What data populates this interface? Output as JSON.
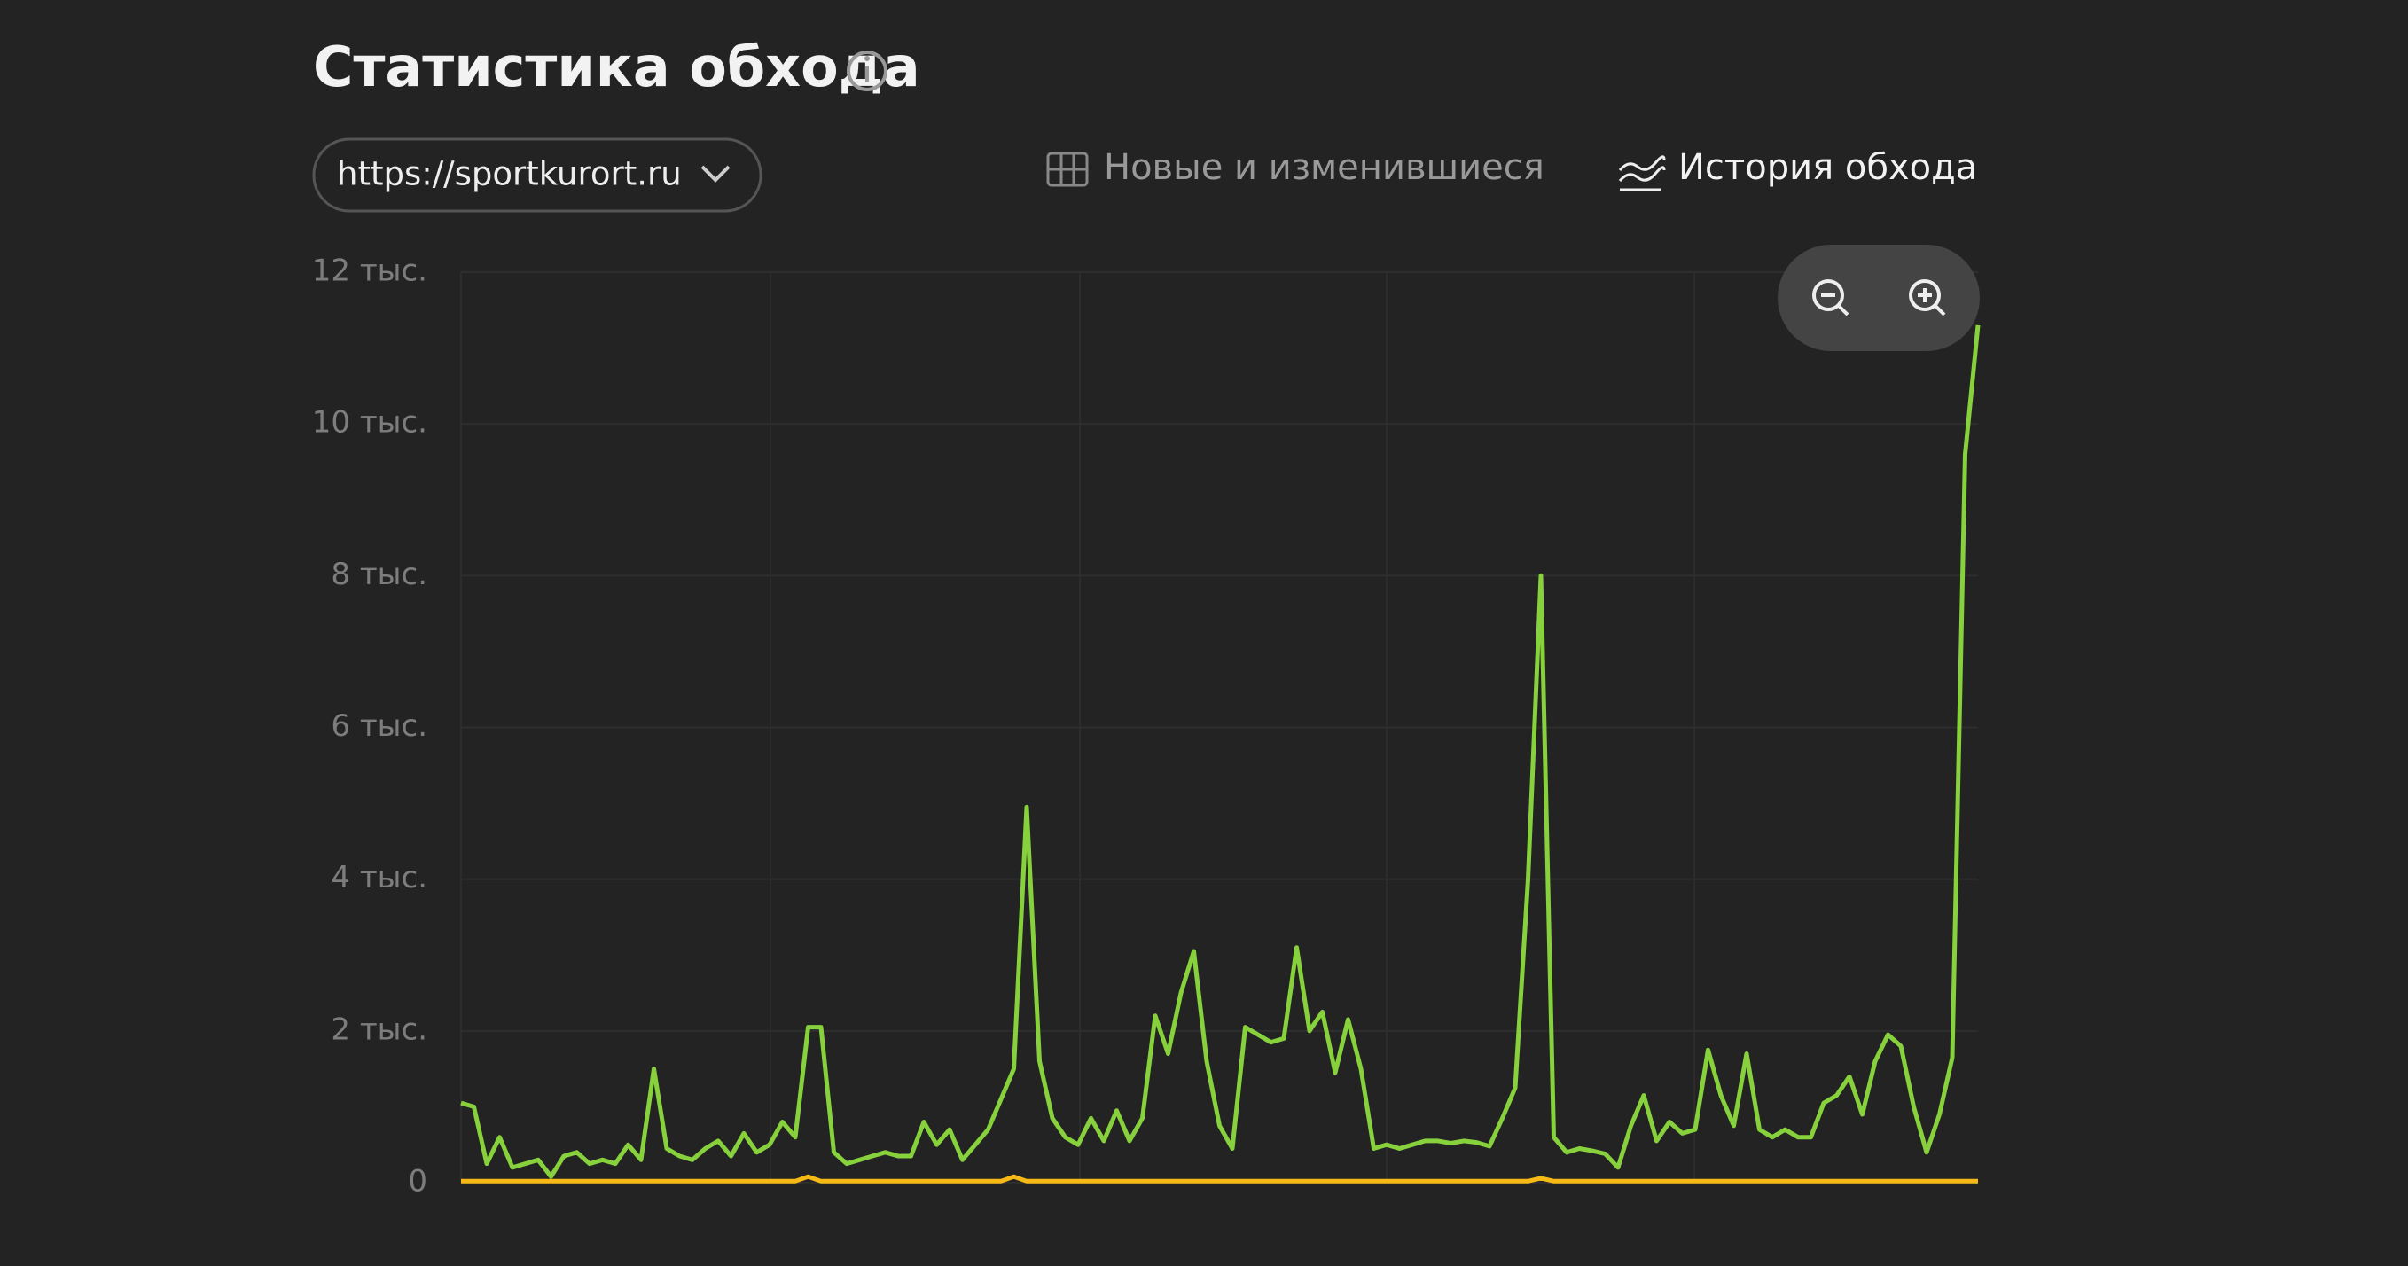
{
  "chart_data": {
    "type": "line",
    "title": "Статистика обхода",
    "site_selector": "https://sportkurort.ru",
    "tabs": [
      "Новые и изменившиеся",
      "История обхода"
    ],
    "ylim": [
      0,
      12000
    ],
    "yticks": [
      0,
      {
        "value": 2000,
        "label": "2 тыс."
      },
      {
        "value": 4000,
        "label": "4 тыс."
      },
      {
        "value": 6000,
        "label": "6 тыс."
      },
      {
        "value": 8000,
        "label": "8 тыс."
      },
      {
        "value": 10000,
        "label": "10 тыс."
      },
      {
        "value": 12000,
        "label": "12 тыс."
      }
    ],
    "grid": true,
    "series": [
      {
        "color": "#86d13c",
        "values": [
          1050,
          1000,
          250,
          600,
          200,
          250,
          300,
          80,
          350,
          400,
          250,
          300,
          250,
          500,
          300,
          1500,
          450,
          350,
          300,
          450,
          550,
          350,
          650,
          400,
          500,
          800,
          600,
          2050,
          2050,
          400,
          250,
          300,
          350,
          400,
          350,
          350,
          800,
          500,
          700,
          300,
          500,
          700,
          1100,
          1500,
          4950,
          1600,
          850,
          600,
          500,
          850,
          550,
          950,
          550,
          850,
          2200,
          1700,
          2500,
          3050,
          1600,
          750,
          450,
          2050,
          1950,
          1850,
          1900,
          3100,
          2000,
          2250,
          1450,
          2150,
          1500,
          450,
          500,
          450,
          500,
          550,
          550,
          520,
          550,
          530,
          480,
          850,
          1250,
          4000,
          8000,
          600,
          400,
          450,
          420,
          380,
          200,
          750,
          1150,
          550,
          800,
          650,
          700,
          1750,
          1150,
          750,
          1700,
          700,
          600,
          700,
          600,
          600,
          1050,
          1150,
          1400,
          900,
          1600,
          1950,
          1800,
          1000,
          400,
          900,
          1650,
          9600,
          11300
        ]
      },
      {
        "color": "#f7b916",
        "values": [
          20,
          20,
          20,
          20,
          20,
          20,
          20,
          20,
          20,
          20,
          20,
          20,
          20,
          20,
          20,
          20,
          20,
          20,
          20,
          20,
          20,
          20,
          20,
          20,
          20,
          20,
          20,
          80,
          20,
          20,
          20,
          20,
          20,
          20,
          20,
          20,
          20,
          20,
          20,
          20,
          20,
          20,
          20,
          80,
          20,
          20,
          20,
          20,
          20,
          20,
          20,
          20,
          20,
          20,
          20,
          20,
          20,
          20,
          20,
          20,
          20,
          20,
          20,
          20,
          20,
          20,
          20,
          20,
          20,
          20,
          20,
          20,
          20,
          20,
          20,
          20,
          20,
          20,
          20,
          20,
          20,
          20,
          20,
          20,
          60,
          20,
          20,
          20,
          20,
          20,
          20,
          20,
          20,
          20,
          20,
          20,
          20,
          20,
          20,
          20,
          20,
          20,
          20,
          20,
          20,
          20,
          20,
          20,
          20,
          20,
          20,
          20,
          20,
          20,
          20,
          20,
          20,
          20,
          20
        ]
      }
    ]
  }
}
